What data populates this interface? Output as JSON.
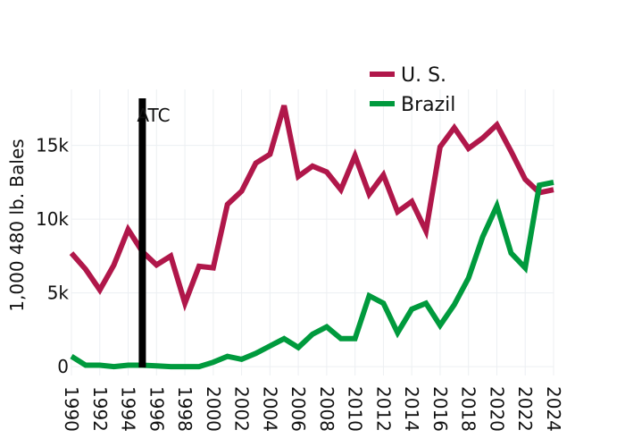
{
  "chart_data": {
    "type": "line",
    "ylabel": "1,000 480 lb. Bales",
    "xlim": [
      1990,
      2024
    ],
    "ylim": [
      -600,
      18800
    ],
    "yticks": [
      0,
      5000,
      10000,
      15000
    ],
    "ytick_labels": [
      "0",
      "5k",
      "10k",
      "15k"
    ],
    "xticks": [
      1990,
      1992,
      1994,
      1996,
      1998,
      2000,
      2002,
      2004,
      2006,
      2008,
      2010,
      2012,
      2014,
      2016,
      2018,
      2020,
      2022,
      2024
    ],
    "xtick_labels": [
      "1990",
      "1992",
      "1994",
      "1996",
      "1998",
      "2000",
      "2002",
      "2004",
      "2006",
      "2008",
      "2010",
      "2012",
      "2014",
      "2016",
      "2018",
      "2020",
      "2022",
      "2024"
    ],
    "grid": true,
    "legend_position": "top-right",
    "x": [
      1990,
      1991,
      1992,
      1993,
      1994,
      1995,
      1996,
      1997,
      1998,
      1999,
      2000,
      2001,
      2002,
      2003,
      2004,
      2005,
      2006,
      2007,
      2008,
      2009,
      2010,
      2011,
      2012,
      2013,
      2014,
      2015,
      2016,
      2017,
      2018,
      2019,
      2020,
      2021,
      2022,
      2023,
      2024
    ],
    "series": [
      {
        "name": "U. S.",
        "color": "#b0174a",
        "values": [
          7700,
          6600,
          5200,
          6900,
          9300,
          7800,
          6900,
          7500,
          4300,
          6800,
          6700,
          11000,
          11900,
          13800,
          14400,
          17700,
          12900,
          13600,
          13200,
          12000,
          14300,
          11700,
          13000,
          10500,
          11200,
          9200,
          14900,
          16200,
          14800,
          15500,
          16400,
          14600,
          12700,
          11800,
          12000
        ]
      },
      {
        "name": "Brazil",
        "color": "#009a3d",
        "values": [
          700,
          100,
          100,
          0,
          100,
          100,
          50,
          0,
          0,
          0,
          300,
          700,
          500,
          900,
          1400,
          1900,
          1300,
          2200,
          2700,
          1900,
          1900,
          4800,
          4300,
          2300,
          3900,
          4300,
          2800,
          4200,
          6000,
          8800,
          10900,
          7700,
          6700,
          12300,
          12500
        ]
      }
    ],
    "annotations": [
      {
        "label": "ATC",
        "x": 1995,
        "color": "#000000"
      }
    ]
  }
}
